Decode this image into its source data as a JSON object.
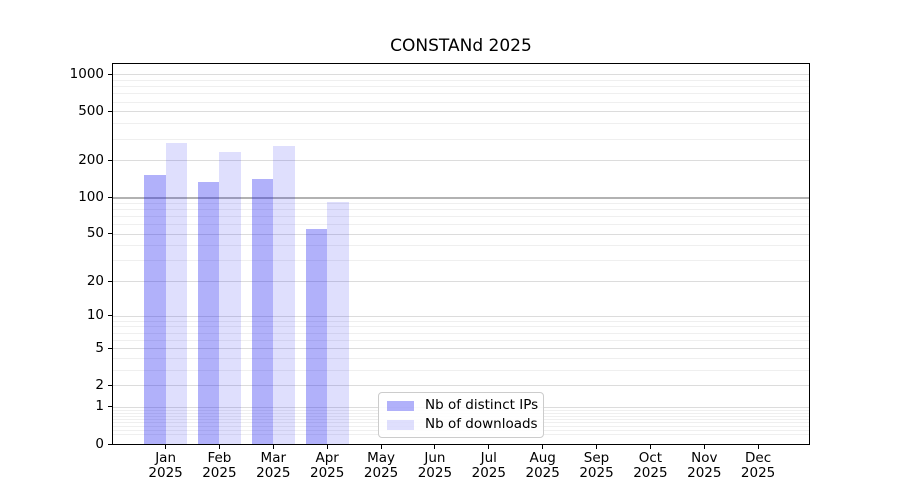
{
  "chart_data": {
    "type": "bar",
    "title": "CONSTANd 2025",
    "scale": "log1p",
    "categories": [
      "Jan",
      "Feb",
      "Mar",
      "Apr",
      "May",
      "Jun",
      "Jul",
      "Aug",
      "Sep",
      "Oct",
      "Nov",
      "Dec"
    ],
    "category_year": "2025",
    "series": [
      {
        "name": "Nb of distinct IPs",
        "fill": "rgba(25,25,240,0.34)",
        "values": [
          150,
          133,
          141,
          55,
          0,
          0,
          0,
          0,
          0,
          0,
          0,
          0
        ]
      },
      {
        "name": "Nb of downloads",
        "fill": "rgba(25,25,240,0.14)",
        "values": [
          275,
          233,
          260,
          91,
          0,
          0,
          0,
          0,
          0,
          0,
          0,
          0
        ]
      }
    ],
    "yticks": [
      0,
      1,
      2,
      5,
      10,
      20,
      50,
      100,
      200,
      500,
      1000
    ],
    "yticklabels": [
      "0",
      "1",
      "2",
      "5",
      "10",
      "20",
      "50",
      "100",
      "200",
      "500",
      "1000"
    ],
    "ylim": [
      0,
      1210
    ],
    "xlabel": "",
    "ylabel": "",
    "grid": {
      "major_color": "#dcdcdc",
      "minor_color": "#efefef",
      "emphasis_tick": 100,
      "emphasis_color": "#b2b2b2"
    },
    "legend": {
      "location": "inside-bottom-center",
      "items": [
        "Nb of distinct IPs",
        "Nb of downloads"
      ]
    }
  },
  "colors": {
    "spine": "#000000",
    "text": "#000000",
    "background": "#ffffff"
  }
}
